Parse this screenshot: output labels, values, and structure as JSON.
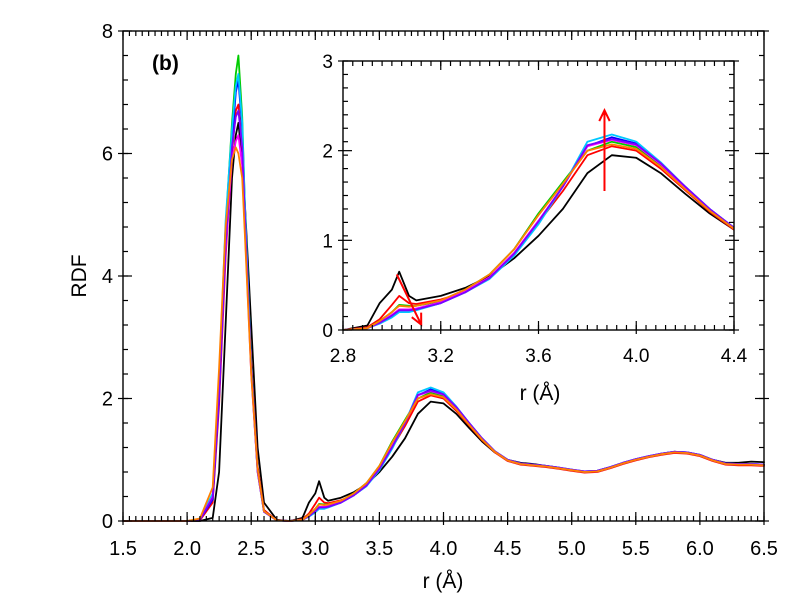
{
  "chart_data": [
    {
      "type": "line",
      "panel_label": "(b)",
      "xlabel": "r (Å)",
      "ylabel": "RDF",
      "xlim": [
        1.5,
        6.5
      ],
      "ylim": [
        0,
        8
      ],
      "x_major_ticks": [
        1.5,
        2.0,
        2.5,
        3.0,
        3.5,
        4.0,
        4.5,
        5.0,
        5.5,
        6.0,
        6.5
      ],
      "x_tick_labels": [
        "1.5",
        "2.0",
        "2.5",
        "3.0",
        "3.5",
        "4.0",
        "4.5",
        "5.0",
        "5.5",
        "6.0",
        "6.5"
      ],
      "y_major_ticks": [
        0,
        2,
        4,
        6,
        8
      ],
      "y_tick_labels": [
        "0",
        "2",
        "4",
        "6",
        "8"
      ],
      "x": [
        1.5,
        2.0,
        2.1,
        2.2,
        2.25,
        2.3,
        2.35,
        2.38,
        2.4,
        2.43,
        2.45,
        2.5,
        2.55,
        2.6,
        2.7,
        2.8,
        2.9,
        2.95,
        3.0,
        3.03,
        3.07,
        3.1,
        3.2,
        3.3,
        3.4,
        3.5,
        3.6,
        3.7,
        3.8,
        3.9,
        4.0,
        4.1,
        4.2,
        4.3,
        4.4,
        4.5,
        4.6,
        4.7,
        4.8,
        4.9,
        5.0,
        5.1,
        5.2,
        5.3,
        5.4,
        5.5,
        5.6,
        5.7,
        5.8,
        5.9,
        6.0,
        6.1,
        6.2,
        6.3,
        6.4,
        6.5
      ],
      "series": [
        {
          "name": "black",
          "color": "#000000",
          "values": [
            0,
            0,
            0,
            0.05,
            0.8,
            3.2,
            5.6,
            6.3,
            6.5,
            5.9,
            5.2,
            3.2,
            1.2,
            0.3,
            0.02,
            0,
            0.05,
            0.3,
            0.45,
            0.65,
            0.38,
            0.33,
            0.38,
            0.47,
            0.6,
            0.8,
            1.05,
            1.35,
            1.75,
            1.95,
            1.92,
            1.75,
            1.52,
            1.3,
            1.12,
            1.0,
            0.95,
            0.93,
            0.9,
            0.87,
            0.83,
            0.8,
            0.82,
            0.88,
            0.95,
            1.0,
            1.05,
            1.1,
            1.13,
            1.12,
            1.08,
            1.0,
            0.95,
            0.95,
            0.97,
            0.96
          ]
        },
        {
          "name": "red",
          "color": "#ff0000",
          "values": [
            0,
            0,
            0.01,
            0.3,
            1.9,
            4.3,
            6.0,
            6.7,
            6.8,
            6.1,
            5.0,
            2.6,
            0.9,
            0.18,
            0.01,
            0,
            0.03,
            0.12,
            0.28,
            0.38,
            0.3,
            0.29,
            0.34,
            0.42,
            0.58,
            0.85,
            1.2,
            1.55,
            1.95,
            2.05,
            2.0,
            1.8,
            1.56,
            1.32,
            1.12,
            0.98,
            0.92,
            0.9,
            0.88,
            0.85,
            0.82,
            0.79,
            0.8,
            0.86,
            0.93,
            0.99,
            1.04,
            1.08,
            1.11,
            1.1,
            1.06,
            0.98,
            0.92,
            0.91,
            0.91,
            0.9
          ]
        },
        {
          "name": "green",
          "color": "#00cc00",
          "values": [
            0,
            0,
            0.02,
            0.4,
            2.2,
            4.8,
            6.5,
            7.3,
            7.6,
            6.6,
            5.2,
            2.5,
            0.8,
            0.15,
            0.01,
            0,
            0.02,
            0.1,
            0.2,
            0.28,
            0.27,
            0.27,
            0.32,
            0.45,
            0.62,
            0.9,
            1.3,
            1.65,
            2.0,
            2.1,
            2.04,
            1.83,
            1.58,
            1.33,
            1.13,
            0.99,
            0.93,
            0.91,
            0.89,
            0.86,
            0.83,
            0.8,
            0.81,
            0.87,
            0.94,
            1.0,
            1.05,
            1.09,
            1.12,
            1.11,
            1.07,
            0.99,
            0.93,
            0.92,
            0.92,
            0.91
          ]
        },
        {
          "name": "blue",
          "color": "#0000ff",
          "values": [
            0,
            0,
            0.02,
            0.35,
            2.0,
            4.5,
            6.2,
            7.0,
            7.2,
            6.4,
            5.1,
            2.5,
            0.85,
            0.16,
            0.01,
            0,
            0.02,
            0.08,
            0.16,
            0.22,
            0.22,
            0.23,
            0.3,
            0.42,
            0.58,
            0.85,
            1.2,
            1.6,
            2.05,
            2.15,
            2.08,
            1.86,
            1.6,
            1.35,
            1.14,
            1.0,
            0.94,
            0.92,
            0.9,
            0.87,
            0.84,
            0.81,
            0.82,
            0.88,
            0.95,
            1.01,
            1.06,
            1.1,
            1.13,
            1.12,
            1.08,
            1.0,
            0.94,
            0.93,
            0.93,
            0.92
          ]
        },
        {
          "name": "cyan",
          "color": "#00c8ff",
          "values": [
            0,
            0,
            0.03,
            0.45,
            2.3,
            4.9,
            6.4,
            7.1,
            7.3,
            6.5,
            5.2,
            2.5,
            0.82,
            0.15,
            0.01,
            0,
            0.02,
            0.07,
            0.14,
            0.2,
            0.2,
            0.22,
            0.3,
            0.42,
            0.57,
            0.83,
            1.18,
            1.6,
            2.1,
            2.18,
            2.1,
            1.87,
            1.6,
            1.35,
            1.14,
            1.0,
            0.94,
            0.92,
            0.9,
            0.87,
            0.84,
            0.81,
            0.82,
            0.88,
            0.95,
            1.01,
            1.06,
            1.1,
            1.13,
            1.12,
            1.08,
            1.0,
            0.94,
            0.93,
            0.93,
            0.92
          ]
        },
        {
          "name": "magenta",
          "color": "#ff00ff",
          "values": [
            0,
            0,
            0.02,
            0.4,
            2.1,
            4.4,
            5.9,
            6.2,
            6.3,
            5.8,
            4.8,
            2.4,
            0.8,
            0.15,
            0.01,
            0,
            0.02,
            0.08,
            0.17,
            0.23,
            0.23,
            0.24,
            0.31,
            0.43,
            0.59,
            0.86,
            1.22,
            1.6,
            2.05,
            2.12,
            2.06,
            1.85,
            1.59,
            1.34,
            1.13,
            0.99,
            0.93,
            0.91,
            0.89,
            0.86,
            0.83,
            0.8,
            0.81,
            0.87,
            0.94,
            1.0,
            1.05,
            1.09,
            1.12,
            1.11,
            1.07,
            0.99,
            0.93,
            0.92,
            0.92,
            0.91
          ]
        },
        {
          "name": "purple",
          "color": "#7f00ff",
          "values": [
            0,
            0,
            0.02,
            0.38,
            2.05,
            4.5,
            6.1,
            6.6,
            6.7,
            6.1,
            5.0,
            2.45,
            0.82,
            0.15,
            0.01,
            0,
            0.02,
            0.08,
            0.16,
            0.22,
            0.22,
            0.23,
            0.3,
            0.42,
            0.58,
            0.85,
            1.21,
            1.6,
            2.06,
            2.13,
            2.07,
            1.86,
            1.6,
            1.35,
            1.14,
            1.0,
            0.94,
            0.92,
            0.9,
            0.87,
            0.84,
            0.81,
            0.82,
            0.88,
            0.95,
            1.01,
            1.06,
            1.1,
            1.13,
            1.12,
            1.08,
            1.0,
            0.94,
            0.93,
            0.93,
            0.92
          ]
        },
        {
          "name": "orange",
          "color": "#ff8000",
          "values": [
            0,
            0,
            0.04,
            0.55,
            2.5,
            4.8,
            5.9,
            6.1,
            6.0,
            5.6,
            4.7,
            2.4,
            0.85,
            0.16,
            0.01,
            0,
            0.02,
            0.1,
            0.2,
            0.27,
            0.26,
            0.27,
            0.33,
            0.45,
            0.62,
            0.9,
            1.28,
            1.63,
            2.0,
            2.07,
            2.02,
            1.82,
            1.57,
            1.33,
            1.13,
            0.99,
            0.93,
            0.91,
            0.89,
            0.86,
            0.83,
            0.8,
            0.81,
            0.87,
            0.94,
            1.0,
            1.05,
            1.09,
            1.12,
            1.11,
            1.07,
            0.99,
            0.93,
            0.92,
            0.92,
            0.91
          ]
        }
      ]
    },
    {
      "type": "line",
      "role": "inset",
      "xlabel": "r (Å)",
      "ylabel": "",
      "xlim": [
        2.8,
        4.4
      ],
      "ylim": [
        0,
        3
      ],
      "x_major_ticks": [
        2.8,
        3.2,
        3.6,
        4.0,
        4.4
      ],
      "x_tick_labels": [
        "2.8",
        "3.2",
        "3.6",
        "4.0",
        "4.4"
      ],
      "y_major_ticks": [
        0,
        1,
        2,
        3
      ],
      "y_tick_labels": [
        "0",
        "1",
        "2",
        "3"
      ],
      "x": [
        2.8,
        2.9,
        2.95,
        3.0,
        3.03,
        3.07,
        3.1,
        3.2,
        3.3,
        3.4,
        3.5,
        3.6,
        3.7,
        3.8,
        3.9,
        4.0,
        4.1,
        4.2,
        4.3,
        4.4
      ],
      "annotations": [
        {
          "type": "arrow",
          "color": "#ff0000",
          "direction": "up",
          "x": 3.87,
          "y_from": 1.55,
          "y_to": 2.45
        },
        {
          "type": "arrow",
          "color": "#ff0000",
          "direction": "down",
          "x_from": 3.02,
          "y_from": 0.62,
          "x_to": 3.12,
          "y_to": 0.06
        }
      ],
      "series_ref": "uses the same series values as the main panel, restricted to the inset x-range"
    }
  ]
}
